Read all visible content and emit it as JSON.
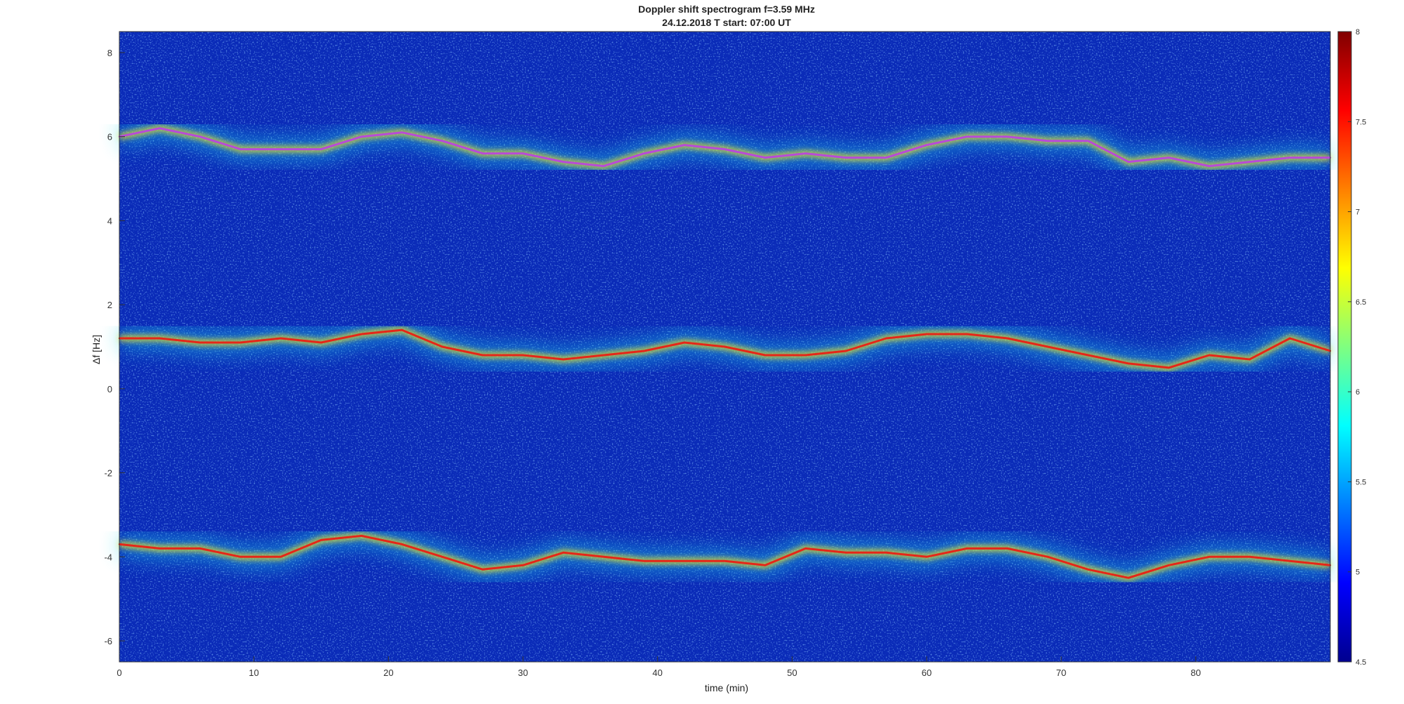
{
  "chart_data": {
    "type": "heatmap",
    "title": "Doppler shift spectrogram f=3.59 MHz",
    "subtitle": "24.12.2018   T start: 07:00 UT",
    "xlabel": "time (min)",
    "ylabel": "Δf [Hz]",
    "xlim": [
      0,
      90
    ],
    "ylim": [
      -6.5,
      8.5
    ],
    "xticks": [
      0,
      10,
      20,
      30,
      40,
      50,
      60,
      70,
      80
    ],
    "yticks": [
      -6,
      -4,
      -2,
      0,
      2,
      4,
      6,
      8
    ],
    "colormap": "jet",
    "colorbar": {
      "clim": [
        4.5,
        8
      ],
      "ticks": [
        4.5,
        5,
        5.5,
        6,
        6.5,
        7,
        7.5,
        8
      ]
    },
    "traces": [
      {
        "color": "#b84ad8",
        "x": [
          0,
          3,
          6,
          9,
          12,
          15,
          18,
          21,
          24,
          27,
          30,
          33,
          36,
          39,
          42,
          45,
          48,
          51,
          54,
          57,
          60,
          63,
          66,
          69,
          72,
          75,
          78,
          81,
          84,
          87,
          90
        ],
        "y": [
          6.0,
          6.2,
          6.0,
          5.7,
          5.7,
          5.7,
          6.0,
          6.1,
          5.9,
          5.6,
          5.6,
          5.4,
          5.3,
          5.6,
          5.8,
          5.7,
          5.5,
          5.6,
          5.5,
          5.5,
          5.8,
          6.0,
          6.0,
          5.9,
          5.9,
          5.4,
          5.5,
          5.3,
          5.4,
          5.5,
          5.5
        ]
      },
      {
        "color": "#e52618",
        "x": [
          0,
          3,
          6,
          9,
          12,
          15,
          18,
          21,
          24,
          27,
          30,
          33,
          36,
          39,
          42,
          45,
          48,
          51,
          54,
          57,
          60,
          63,
          66,
          69,
          72,
          75,
          78,
          81,
          84,
          87,
          90
        ],
        "y": [
          1.2,
          1.2,
          1.1,
          1.1,
          1.2,
          1.1,
          1.3,
          1.4,
          1.0,
          0.8,
          0.8,
          0.7,
          0.8,
          0.9,
          1.1,
          1.0,
          0.8,
          0.8,
          0.9,
          1.2,
          1.3,
          1.3,
          1.2,
          1.0,
          0.8,
          0.6,
          0.5,
          0.8,
          0.7,
          1.2,
          0.9
        ]
      },
      {
        "color": "#e52618",
        "x": [
          0,
          3,
          6,
          9,
          12,
          15,
          18,
          21,
          24,
          27,
          30,
          33,
          36,
          39,
          42,
          45,
          48,
          51,
          54,
          57,
          60,
          63,
          66,
          69,
          72,
          75,
          78,
          81,
          84,
          87,
          90
        ],
        "y": [
          -3.7,
          -3.8,
          -3.8,
          -4.0,
          -4.0,
          -3.6,
          -3.5,
          -3.7,
          -4.0,
          -4.3,
          -4.2,
          -3.9,
          -4.0,
          -4.1,
          -4.1,
          -4.1,
          -4.2,
          -3.8,
          -3.9,
          -3.9,
          -4.0,
          -3.8,
          -3.8,
          -4.0,
          -4.3,
          -4.5,
          -4.2,
          -4.0,
          -4.0,
          -4.1,
          -4.2
        ]
      }
    ]
  }
}
